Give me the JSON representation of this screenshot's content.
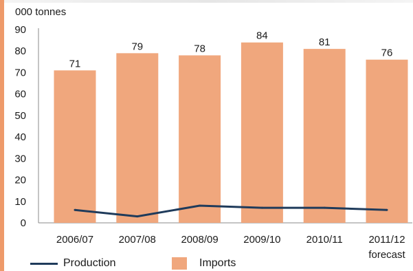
{
  "chart_data": {
    "type": "bar",
    "unit_label": "000 tonnes",
    "categories": [
      "2006/07",
      "2007/08",
      "2008/09",
      "2009/10",
      "2010/11",
      "2011/12"
    ],
    "category_sublabels": [
      "",
      "",
      "",
      "",
      "",
      "forecast"
    ],
    "y_ticks": [
      0,
      10,
      20,
      30,
      40,
      50,
      60,
      70,
      80,
      90
    ],
    "ylim": [
      0,
      90
    ],
    "grid": false,
    "series": [
      {
        "name": "Imports",
        "kind": "bar",
        "color": "#f0a77d",
        "values": [
          71,
          79,
          78,
          84,
          81,
          76
        ],
        "labels": [
          "71",
          "79",
          "78",
          "84",
          "81",
          "76"
        ]
      },
      {
        "name": "Production",
        "kind": "line",
        "color": "#1f3b5b",
        "values": [
          6,
          3,
          8,
          7,
          7,
          6
        ]
      }
    ],
    "legend": {
      "placement": "bottom",
      "line_label": "Production",
      "bar_label": "Imports"
    }
  }
}
